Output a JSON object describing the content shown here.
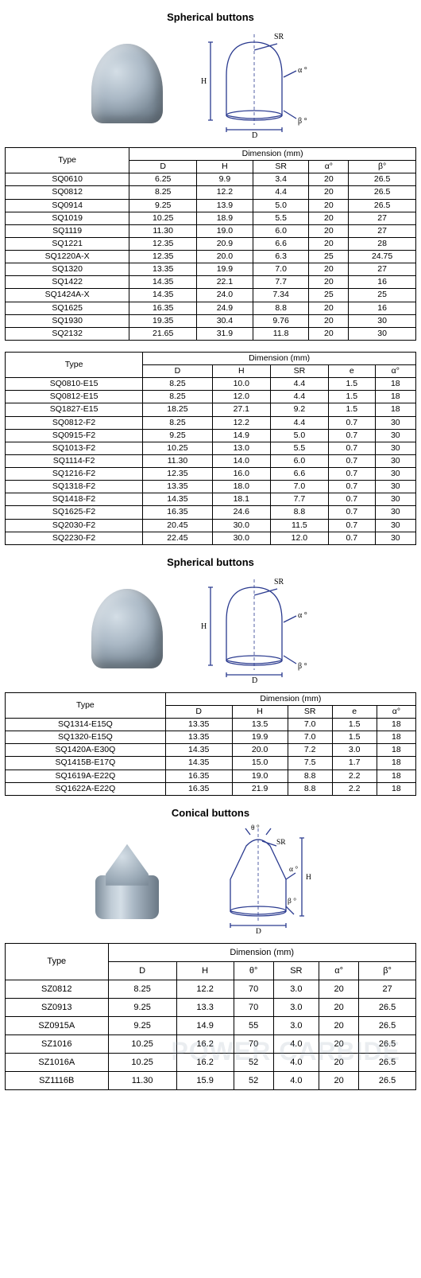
{
  "sections": {
    "spherical": {
      "title": "Spherical buttons",
      "diagram_labels": {
        "H": "H",
        "D": "D",
        "SR": "SR",
        "alpha": "α °",
        "beta": "β °"
      }
    },
    "conical": {
      "title": "Conical buttons",
      "diagram_labels": {
        "H": "H",
        "D": "D",
        "SR": "SR",
        "alpha": "α °",
        "beta": "β °",
        "theta": "θ °"
      }
    }
  },
  "table1": {
    "type_header": "Type",
    "dim_header": "Dimension (mm)",
    "columns": [
      "D",
      "H",
      "SR",
      "α°",
      "β°"
    ],
    "rows": [
      [
        "SQ0610",
        "6.25",
        "9.9",
        "3.4",
        "20",
        "26.5"
      ],
      [
        "SQ0812",
        "8.25",
        "12.2",
        "4.4",
        "20",
        "26.5"
      ],
      [
        "SQ0914",
        "9.25",
        "13.9",
        "5.0",
        "20",
        "26.5"
      ],
      [
        "SQ1019",
        "10.25",
        "18.9",
        "5.5",
        "20",
        "27"
      ],
      [
        "SQ1119",
        "11.30",
        "19.0",
        "6.0",
        "20",
        "27"
      ],
      [
        "SQ1221",
        "12.35",
        "20.9",
        "6.6",
        "20",
        "28"
      ],
      [
        "SQ1220A-X",
        "12.35",
        "20.0",
        "6.3",
        "25",
        "24.75"
      ],
      [
        "SQ1320",
        "13.35",
        "19.9",
        "7.0",
        "20",
        "27"
      ],
      [
        "SQ1422",
        "14.35",
        "22.1",
        "7.7",
        "20",
        "16"
      ],
      [
        "SQ1424A-X",
        "14.35",
        "24.0",
        "7.34",
        "25",
        "25"
      ],
      [
        "SQ1625",
        "16.35",
        "24.9",
        "8.8",
        "20",
        "16"
      ],
      [
        "SQ1930",
        "19.35",
        "30.4",
        "9.76",
        "20",
        "30"
      ],
      [
        "SQ2132",
        "21.65",
        "31.9",
        "11.8",
        "20",
        "30"
      ]
    ]
  },
  "table2": {
    "type_header": "Type",
    "dim_header": "Dimension (mm)",
    "columns": [
      "D",
      "H",
      "SR",
      "e",
      "α°"
    ],
    "rows": [
      [
        "SQ0810-E15",
        "8.25",
        "10.0",
        "4.4",
        "1.5",
        "18"
      ],
      [
        "SQ0812-E15",
        "8.25",
        "12.0",
        "4.4",
        "1.5",
        "18"
      ],
      [
        "SQ1827-E15",
        "18.25",
        "27.1",
        "9.2",
        "1.5",
        "18"
      ],
      [
        "SQ0812-F2",
        "8.25",
        "12.2",
        "4.4",
        "0.7",
        "30"
      ],
      [
        "SQ0915-F2",
        "9.25",
        "14.9",
        "5.0",
        "0.7",
        "30"
      ],
      [
        "SQ1013-F2",
        "10.25",
        "13.0",
        "5.5",
        "0.7",
        "30"
      ],
      [
        "SQ1114-F2",
        "11.30",
        "14.0",
        "6.0",
        "0.7",
        "30"
      ],
      [
        "SQ1216-F2",
        "12.35",
        "16.0",
        "6.6",
        "0.7",
        "30"
      ],
      [
        "SQ1318-F2",
        "13.35",
        "18.0",
        "7.0",
        "0.7",
        "30"
      ],
      [
        "SQ1418-F2",
        "14.35",
        "18.1",
        "7.7",
        "0.7",
        "30"
      ],
      [
        "SQ1625-F2",
        "16.35",
        "24.6",
        "8.8",
        "0.7",
        "30"
      ],
      [
        "SQ2030-F2",
        "20.45",
        "30.0",
        "11.5",
        "0.7",
        "30"
      ],
      [
        "SQ2230-F2",
        "22.45",
        "30.0",
        "12.0",
        "0.7",
        "30"
      ]
    ]
  },
  "table3": {
    "type_header": "Type",
    "dim_header": "Dimension (mm)",
    "columns": [
      "D",
      "H",
      "SR",
      "e",
      "α°"
    ],
    "rows": [
      [
        "SQ1314-E15Q",
        "13.35",
        "13.5",
        "7.0",
        "1.5",
        "18"
      ],
      [
        "SQ1320-E15Q",
        "13.35",
        "19.9",
        "7.0",
        "1.5",
        "18"
      ],
      [
        "SQ1420A-E30Q",
        "14.35",
        "20.0",
        "7.2",
        "3.0",
        "18"
      ],
      [
        "SQ1415B-E17Q",
        "14.35",
        "15.0",
        "7.5",
        "1.7",
        "18"
      ],
      [
        "SQ1619A-E22Q",
        "16.35",
        "19.0",
        "8.8",
        "2.2",
        "18"
      ],
      [
        "SQ1622A-E22Q",
        "16.35",
        "21.9",
        "8.8",
        "2.2",
        "18"
      ]
    ]
  },
  "table4": {
    "type_header": "Type",
    "dim_header": "Dimension (mm)",
    "columns": [
      "D",
      "H",
      "θ°",
      "SR",
      "α°",
      "β°"
    ],
    "rows": [
      [
        "SZ0812",
        "8.25",
        "12.2",
        "70",
        "3.0",
        "20",
        "27"
      ],
      [
        "SZ0913",
        "9.25",
        "13.3",
        "70",
        "3.0",
        "20",
        "26.5"
      ],
      [
        "SZ0915A",
        "9.25",
        "14.9",
        "55",
        "3.0",
        "20",
        "26.5"
      ],
      [
        "SZ1016",
        "10.25",
        "16.2",
        "70",
        "4.0",
        "20",
        "26.5"
      ],
      [
        "SZ1016A",
        "10.25",
        "16.2",
        "52",
        "4.0",
        "20",
        "26.5"
      ],
      [
        "SZ1116B",
        "11.30",
        "15.9",
        "52",
        "4.0",
        "20",
        "26.5"
      ]
    ]
  },
  "style": {
    "border_color": "#000000",
    "background_color": "#ffffff",
    "font_family": "Verdana",
    "title_fontsize": 13,
    "cell_fontsize": 11,
    "photo_gradient": [
      "#d4dee6",
      "#aab8c5",
      "#7d8c99",
      "#6a7885"
    ],
    "diagram_stroke": "#2a3a8f",
    "watermark_text": "POWER CARBIDE",
    "watermark_color": "rgba(150,165,180,.2)"
  }
}
